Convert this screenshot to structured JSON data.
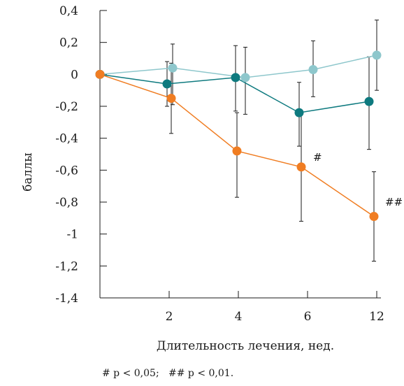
{
  "chart_data": {
    "type": "line",
    "title": "",
    "xlabel": "Длительность лечения, нед.",
    "ylabel": "баллы",
    "ylim": [
      -1.4,
      0.4
    ],
    "y_ticks": [
      0.4,
      0.2,
      0,
      -0.2,
      -0.4,
      -0.6,
      -0.8,
      -1,
      -1.2,
      -1.4
    ],
    "y_tick_labels": [
      "0,4",
      "0,2",
      "0",
      "-0,2",
      "-0,4",
      "-0,6",
      "-0,8",
      "-1",
      "-1,2",
      "-1,4"
    ],
    "categories": [
      "",
      "2",
      "4",
      "6",
      "12"
    ],
    "grid": false,
    "legend": "none",
    "series": [
      {
        "color": "#8ec7cc",
        "values": [
          0,
          0.04,
          -0.02,
          0.03,
          0.12
        ],
        "err_high": [
          null,
          0.19,
          0.17,
          0.21,
          0.34
        ],
        "err_low": [
          null,
          -0.19,
          -0.25,
          -0.14,
          -0.1
        ]
      },
      {
        "color": "#0e7a7f",
        "values": [
          0,
          -0.06,
          -0.02,
          -0.24,
          -0.17
        ],
        "err_high": [
          null,
          0.08,
          0.18,
          -0.05,
          0.11
        ],
        "err_low": [
          null,
          -0.2,
          -0.23,
          -0.45,
          -0.47
        ]
      },
      {
        "color": "#f07d22",
        "values": [
          0,
          -0.15,
          -0.48,
          -0.58,
          -0.89
        ],
        "err_high": [
          null,
          0.07,
          -0.24,
          -0.25,
          -0.61
        ],
        "err_low": [
          null,
          -0.37,
          -0.77,
          -0.92,
          -1.17
        ]
      }
    ],
    "annotations": [
      {
        "text": "#",
        "category": 3,
        "y": -0.52
      },
      {
        "text": "##",
        "category": 4,
        "y": -0.8
      }
    ],
    "footnote": "# p < 0,05;   ## p < 0,01."
  }
}
